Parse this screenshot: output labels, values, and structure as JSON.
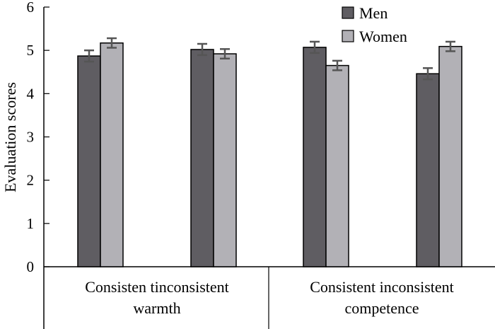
{
  "chart_data": {
    "type": "bar",
    "title": "",
    "xlabel": "",
    "ylabel": "Evaluation scores",
    "ylim": [
      0,
      6
    ],
    "yticks": [
      "0",
      "1",
      "2",
      "3",
      "4",
      "5",
      "6"
    ],
    "groups": [
      {
        "label": [
          "Consisten tinconsistent",
          "warmth"
        ],
        "categories": [
          "",
          ""
        ]
      },
      {
        "label": [
          "Consistent inconsistent",
          "competence"
        ],
        "categories": [
          "",
          ""
        ]
      }
    ],
    "bar_positions": 4,
    "series": [
      {
        "name": "Men",
        "color": "#5f5d62",
        "values": [
          4.87,
          5.02,
          5.07,
          4.46
        ],
        "errors": [
          0.13,
          0.13,
          0.13,
          0.13
        ]
      },
      {
        "name": "Women",
        "color": "#b2b1b6",
        "values": [
          5.17,
          4.92,
          4.65,
          5.09
        ],
        "errors": [
          0.11,
          0.11,
          0.11,
          0.11
        ]
      }
    ],
    "legend": "top-right"
  }
}
